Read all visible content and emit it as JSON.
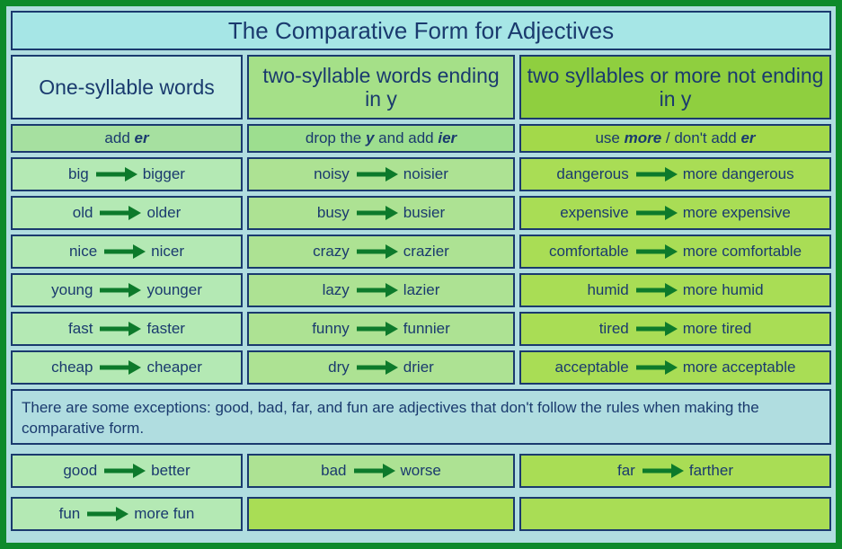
{
  "title": "The Comparative Form for Adjectives",
  "columns": [
    {
      "header": "One-syllable words",
      "rule_pre": "add ",
      "rule_bold": "er",
      "rule_post": "",
      "examples": [
        {
          "from": "big",
          "to": "bigger"
        },
        {
          "from": "old",
          "to": "older"
        },
        {
          "from": "nice",
          "to": "nicer"
        },
        {
          "from": "young",
          "to": "younger"
        },
        {
          "from": "fast",
          "to": "faster"
        },
        {
          "from": "cheap",
          "to": "cheaper"
        }
      ]
    },
    {
      "header": "two-syllable words ending in y",
      "rule_pre": "drop the ",
      "rule_bold": "y",
      "rule_mid": " and add ",
      "rule_bold2": "ier",
      "examples": [
        {
          "from": "noisy",
          "to": "noisier"
        },
        {
          "from": "busy",
          "to": "busier"
        },
        {
          "from": "crazy",
          "to": "crazier"
        },
        {
          "from": "lazy",
          "to": "lazier"
        },
        {
          "from": "funny",
          "to": "funnier"
        },
        {
          "from": "dry",
          "to": "drier"
        }
      ]
    },
    {
      "header": "two syllables or more not ending in y",
      "rule_pre": "use ",
      "rule_bold": "more",
      "rule_mid": " / don't add ",
      "rule_bold2": "er",
      "examples": [
        {
          "from": "dangerous",
          "to": "more dangerous"
        },
        {
          "from": "expensive",
          "to": "more expensive"
        },
        {
          "from": "comfortable",
          "to": "more comfortable"
        },
        {
          "from": "humid",
          "to": "more humid"
        },
        {
          "from": "tired",
          "to": "more tired"
        },
        {
          "from": "acceptable",
          "to": "more acceptable"
        }
      ]
    }
  ],
  "exceptions_text": "There are some exceptions: good, bad, far, and fun are adjectives that don't follow the rules when making the comparative form.",
  "exception_rows": [
    [
      {
        "from": "good",
        "to": "better"
      },
      {
        "from": "bad",
        "to": "worse"
      },
      {
        "from": "far",
        "to": "farther"
      }
    ],
    [
      {
        "from": "fun",
        "to": "more fun"
      },
      null,
      null
    ]
  ],
  "arrow_color": "#0d7a2b",
  "colors": {
    "border_outer": "#0d8a2b",
    "border_cell": "#1a3a6e",
    "text": "#1a3a6e",
    "page_bg": "#b0dde0"
  }
}
